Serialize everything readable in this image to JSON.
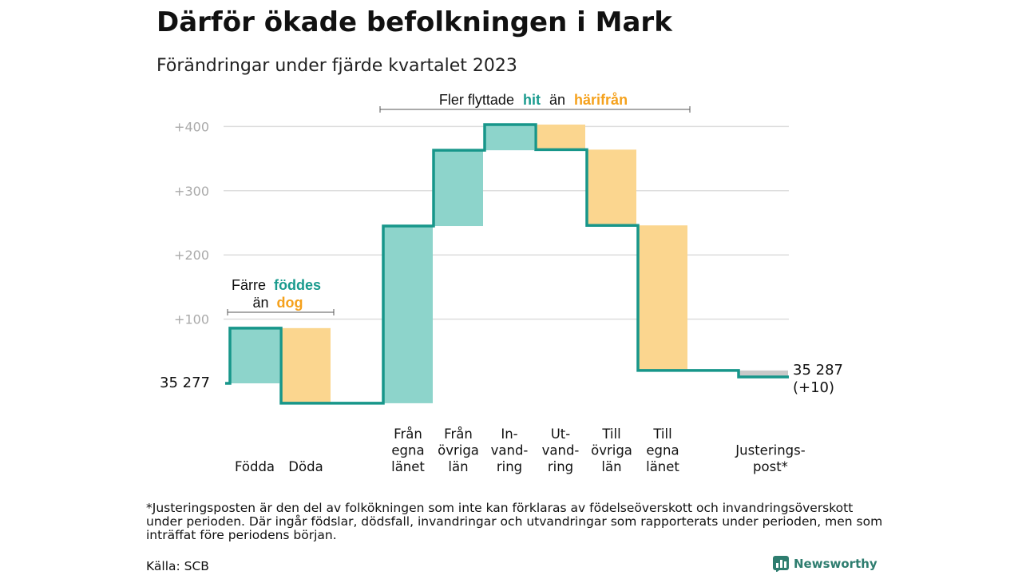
{
  "header": {
    "title": "Därför ökade befolkningen i Mark",
    "subtitle": "Förändringar under fjärde kvartalet 2023"
  },
  "annotations": {
    "migration": {
      "prefix": "Fler flyttade",
      "hit": "hit",
      "middle": "än",
      "harifran": "härifrån"
    },
    "births": {
      "line1_prefix": "Färre",
      "line1_word": "föddes",
      "line2_prefix": "än",
      "line2_word": "dog"
    }
  },
  "labels": {
    "start_value": "35  277",
    "end_value": "35 287",
    "end_change": "(+10)"
  },
  "footer": {
    "note": "*Justeringsposten är den del av folkökningen som inte kan förklaras av födelseöverskott och invandringsöverskott under perioden. Där ingår födslar, dödsfall, invandringar och utvandringar som rapporterats under perioden, men som inträffat före periodens början.",
    "source": "Källa: SCB",
    "brand": "Newsworthy"
  },
  "colors": {
    "increase": "#8dd4cb",
    "decrease": "#fbd68f",
    "adjustment": "#c9c9c9",
    "line": "#17968a",
    "accent_teal": "#1a9b8e",
    "accent_orange": "#f5a11c",
    "grid": "#dddddd",
    "tick": "#aaaaaa"
  },
  "chart_data": {
    "type": "waterfall",
    "start": 35277,
    "end": 35287,
    "y_axis": {
      "ticks": [
        100,
        200,
        300,
        400
      ],
      "tick_labels": [
        "+100",
        "+200",
        "+300",
        "+400"
      ],
      "range": [
        -40,
        410
      ]
    },
    "steps": [
      {
        "label_lines": [
          "Födda"
        ],
        "value": 86,
        "kind": "increase"
      },
      {
        "label_lines": [
          "Döda"
        ],
        "value": -117,
        "kind": "decrease"
      },
      {
        "label_lines": [
          "Från",
          "egna",
          "länet"
        ],
        "value": 276,
        "kind": "increase"
      },
      {
        "label_lines": [
          "Från",
          "övriga",
          "län"
        ],
        "value": 118,
        "kind": "increase"
      },
      {
        "label_lines": [
          "In-",
          "vand-",
          "ring"
        ],
        "value": 40,
        "kind": "increase"
      },
      {
        "label_lines": [
          "Ut-",
          "vand-",
          "ring"
        ],
        "value": -39,
        "kind": "decrease"
      },
      {
        "label_lines": [
          "Till",
          "övriga",
          "län"
        ],
        "value": -118,
        "kind": "decrease"
      },
      {
        "label_lines": [
          "Till",
          "egna",
          "länet"
        ],
        "value": -226,
        "kind": "decrease"
      },
      {
        "label_lines": [
          "Justerings-",
          "post*"
        ],
        "value": -10,
        "kind": "adjustment"
      }
    ]
  }
}
